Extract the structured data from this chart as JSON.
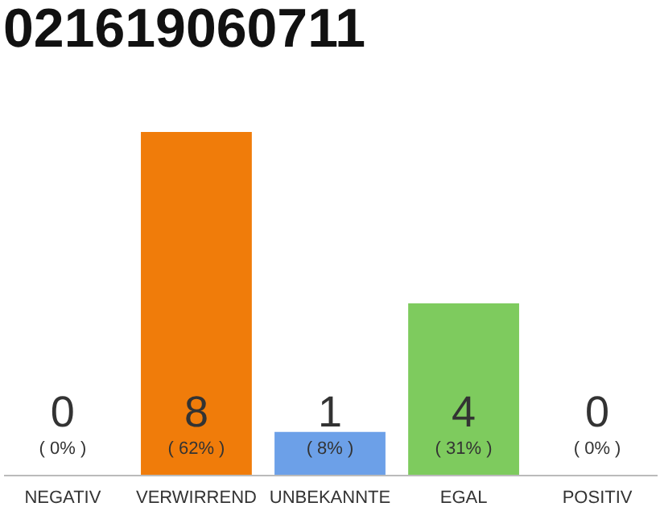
{
  "chart_data": {
    "type": "bar",
    "title": "021619060711",
    "categories": [
      "NEGATIV",
      "VERWIRREND",
      "UNBEKANNTE",
      "EGAL",
      "POSITIV"
    ],
    "values": [
      0,
      8,
      1,
      4,
      0
    ],
    "colors": [
      "#f07c0a",
      "#f07c0a",
      "#6ca0e8",
      "#7ecb5e",
      "#7ecb5e"
    ],
    "ylim": [
      0,
      8
    ],
    "data_labels": true,
    "annotations": [
      "( 0% )",
      "( 62% )",
      "( 8% )",
      "( 31% )",
      "( 0% )"
    ]
  }
}
